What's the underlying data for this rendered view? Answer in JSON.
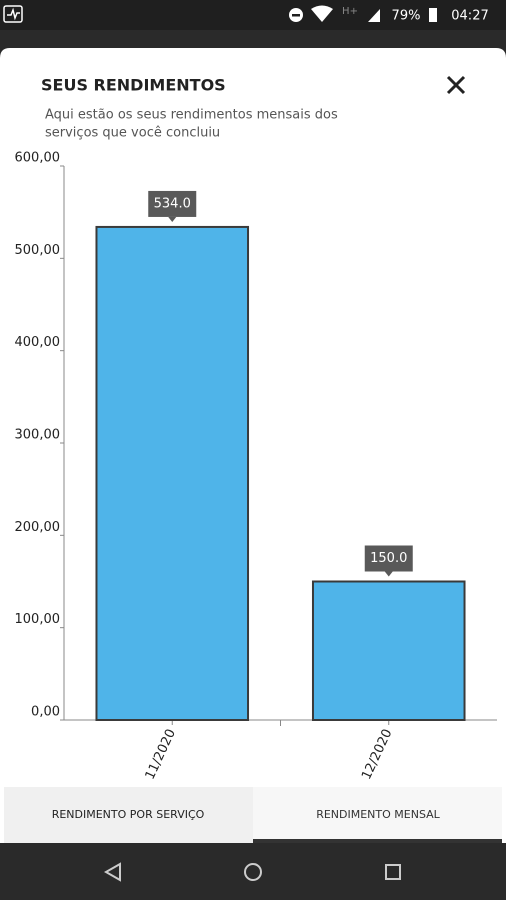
{
  "status_bar": {
    "network": "H+",
    "battery": "79%",
    "time": "04:27"
  },
  "header": {
    "title": "SEUS RENDIMENTOS",
    "subtitle_lines": [
      "Aqui estão os seus rendimentos mensais dos",
      "serviços que você concluiu"
    ]
  },
  "chart_data": {
    "type": "bar",
    "categories": [
      "11/2020",
      "12/2020"
    ],
    "values": [
      534,
      150
    ],
    "value_labels": [
      "534.0",
      "150.0"
    ],
    "color": "#4fb4e9",
    "ylim": [
      0,
      600
    ],
    "yticks": [
      {
        "value": 0,
        "label": "0,00"
      },
      {
        "value": 100,
        "label": "100,00"
      },
      {
        "value": 200,
        "label": "200,00"
      },
      {
        "value": 300,
        "label": "300,00"
      },
      {
        "value": 400,
        "label": "400,00"
      },
      {
        "value": 500,
        "label": "500,00"
      },
      {
        "value": 600,
        "label": "600,00"
      }
    ],
    "grid": false
  },
  "tabs": [
    "RENDIMENTO POR SERVIÇO",
    "RENDIMENTO MENSAL"
  ]
}
